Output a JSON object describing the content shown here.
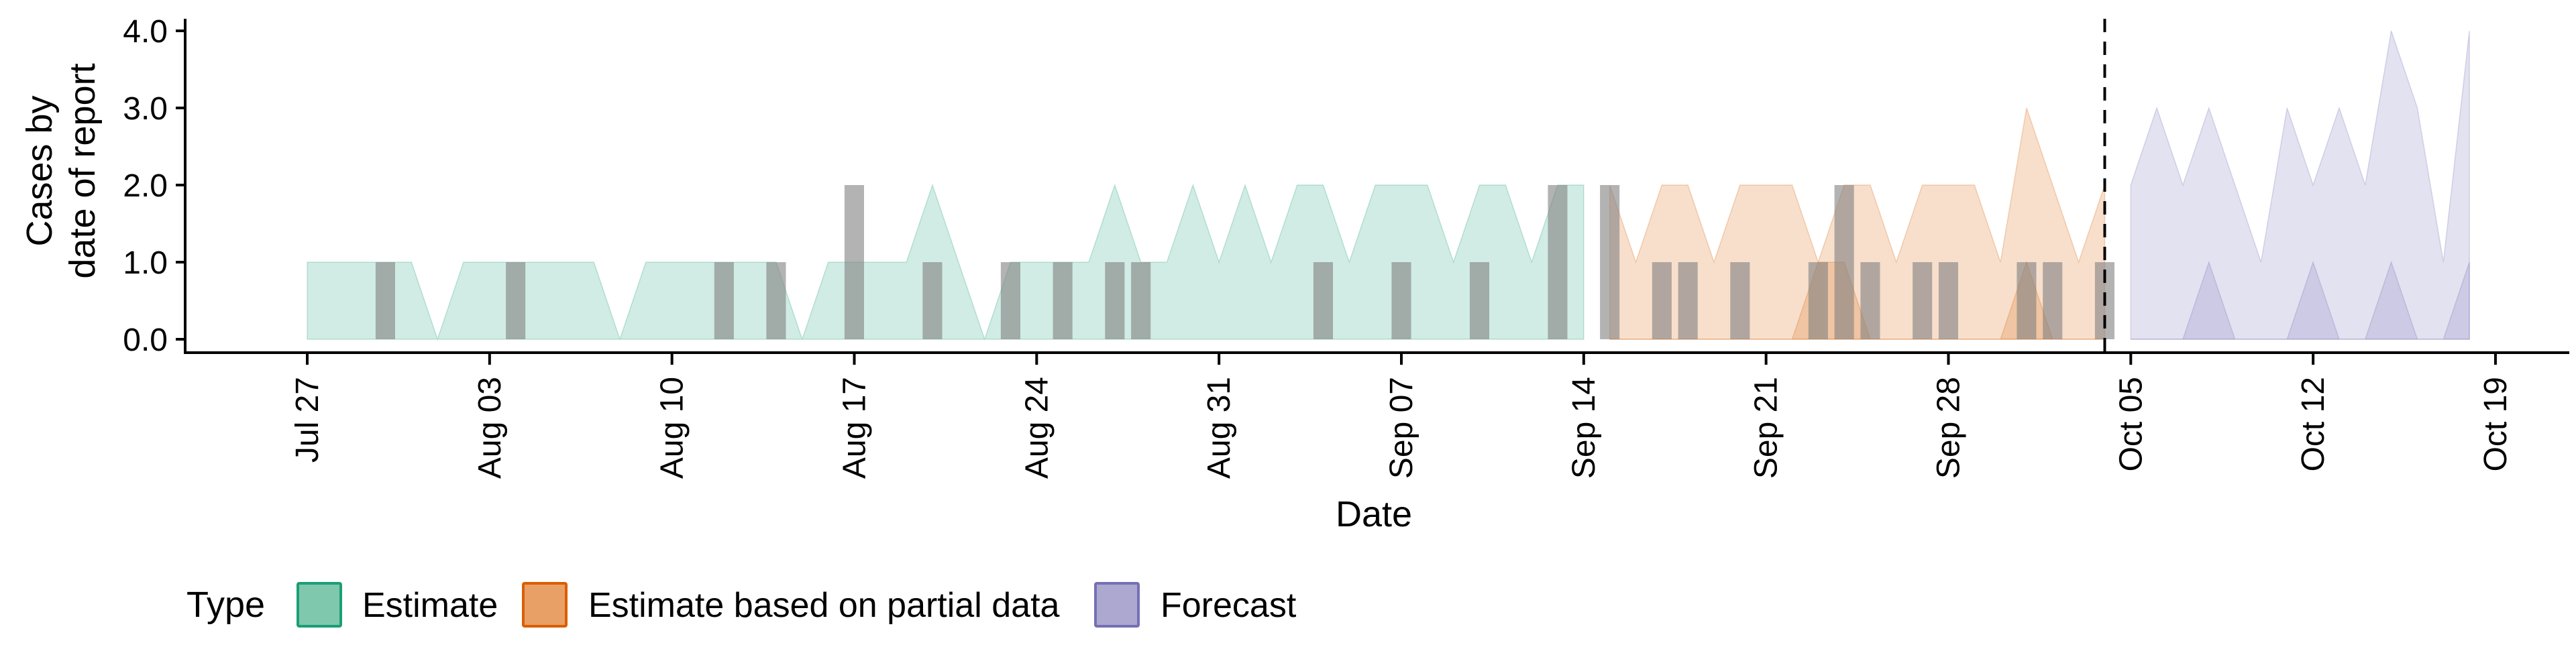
{
  "chart_data": {
    "type": "area",
    "xlabel": "Date",
    "ylabel_lines": [
      "Cases by",
      "date of report"
    ],
    "ylim": [
      0,
      4.0
    ],
    "xlim": [
      "2020-07-24",
      "2020-10-21"
    ],
    "y_ticks": [
      {
        "value": 0,
        "label": "0.0"
      },
      {
        "value": 1,
        "label": "1.0"
      },
      {
        "value": 2,
        "label": "2.0"
      },
      {
        "value": 3,
        "label": "3.0"
      },
      {
        "value": 4,
        "label": "4.0"
      }
    ],
    "x_ticks": [
      {
        "date": "2020-07-27",
        "label": "Jul 27"
      },
      {
        "date": "2020-08-03",
        "label": "Aug 03"
      },
      {
        "date": "2020-08-10",
        "label": "Aug 10"
      },
      {
        "date": "2020-08-17",
        "label": "Aug 17"
      },
      {
        "date": "2020-08-24",
        "label": "Aug 24"
      },
      {
        "date": "2020-08-31",
        "label": "Aug 31"
      },
      {
        "date": "2020-09-07",
        "label": "Sep 07"
      },
      {
        "date": "2020-09-14",
        "label": "Sep 14"
      },
      {
        "date": "2020-09-21",
        "label": "Sep 21"
      },
      {
        "date": "2020-09-28",
        "label": "Sep 28"
      },
      {
        "date": "2020-10-05",
        "label": "Oct 05"
      },
      {
        "date": "2020-10-12",
        "label": "Oct 12"
      },
      {
        "date": "2020-10-19",
        "label": "Oct 19"
      }
    ],
    "forecast_date": "2020-10-04",
    "grid": false,
    "legend": {
      "title": "Type",
      "position": "bottom",
      "entries": [
        {
          "name": "Estimate",
          "fill": "#7fc8ae",
          "stroke": "#1b9e77"
        },
        {
          "name": "Estimate based on partial data",
          "fill": "#e9a066",
          "stroke": "#d95f02"
        },
        {
          "name": "Forecast",
          "fill": "#ada8d0",
          "stroke": "#7570b3"
        }
      ]
    },
    "series": [
      {
        "name": "Estimate",
        "color": "#1b9e77",
        "x": [
          "2020-07-27",
          "2020-07-28",
          "2020-07-29",
          "2020-07-30",
          "2020-07-31",
          "2020-08-01",
          "2020-08-02",
          "2020-08-03",
          "2020-08-04",
          "2020-08-05",
          "2020-08-06",
          "2020-08-07",
          "2020-08-08",
          "2020-08-09",
          "2020-08-10",
          "2020-08-11",
          "2020-08-12",
          "2020-08-13",
          "2020-08-14",
          "2020-08-15",
          "2020-08-16",
          "2020-08-17",
          "2020-08-18",
          "2020-08-19",
          "2020-08-20",
          "2020-08-21",
          "2020-08-22",
          "2020-08-23",
          "2020-08-24",
          "2020-08-25",
          "2020-08-26",
          "2020-08-27",
          "2020-08-28",
          "2020-08-29",
          "2020-08-30",
          "2020-08-31",
          "2020-09-01",
          "2020-09-02",
          "2020-09-03",
          "2020-09-04",
          "2020-09-05",
          "2020-09-06",
          "2020-09-07",
          "2020-09-08",
          "2020-09-09",
          "2020-09-10",
          "2020-09-11",
          "2020-09-12",
          "2020-09-13",
          "2020-09-14"
        ],
        "bands": [
          {
            "lower": 0,
            "upper": [
              1,
              1,
              1,
              1,
              1,
              0,
              1,
              1,
              1,
              1,
              1,
              1,
              0,
              1,
              1,
              1,
              1,
              1,
              1,
              0,
              1,
              1,
              1,
              1,
              2,
              1,
              0,
              1,
              1,
              1,
              1,
              2,
              1,
              1,
              2,
              1,
              2,
              1,
              2,
              2,
              1,
              2,
              2,
              2,
              1,
              2,
              2,
              1,
              2,
              2
            ]
          },
          {
            "lower": 0,
            "upper": [
              0,
              0,
              0,
              0,
              0,
              0,
              0,
              0,
              0,
              0,
              0,
              0,
              0,
              0,
              0,
              0,
              0,
              0,
              0,
              0,
              0,
              0,
              0,
              0,
              0,
              0,
              0,
              0,
              0,
              0,
              0,
              0,
              0,
              0,
              0,
              0,
              0,
              0,
              0,
              0,
              0,
              0,
              0,
              0,
              0,
              0,
              0,
              0,
              0,
              0
            ]
          }
        ]
      },
      {
        "name": "Estimate based on partial data",
        "color": "#d95f02",
        "x": [
          "2020-09-15",
          "2020-09-16",
          "2020-09-17",
          "2020-09-18",
          "2020-09-19",
          "2020-09-20",
          "2020-09-21",
          "2020-09-22",
          "2020-09-23",
          "2020-09-24",
          "2020-09-25",
          "2020-09-26",
          "2020-09-27",
          "2020-09-28",
          "2020-09-29",
          "2020-09-30",
          "2020-10-01",
          "2020-10-02",
          "2020-10-03",
          "2020-10-04"
        ],
        "bands": [
          {
            "lower": 0,
            "upper": [
              2,
              1,
              2,
              2,
              1,
              2,
              2,
              2,
              1,
              2,
              2,
              1,
              2,
              2,
              2,
              1,
              3,
              2,
              1,
              2
            ]
          },
          {
            "lower": 0,
            "upper": [
              0,
              0,
              0,
              0,
              0,
              0,
              0,
              0,
              1,
              1,
              0,
              0,
              0,
              0,
              0,
              0,
              1,
              0,
              0,
              0
            ]
          }
        ]
      },
      {
        "name": "Forecast",
        "color": "#7570b3",
        "x": [
          "2020-10-05",
          "2020-10-06",
          "2020-10-07",
          "2020-10-08",
          "2020-10-09",
          "2020-10-10",
          "2020-10-11",
          "2020-10-12",
          "2020-10-13",
          "2020-10-14",
          "2020-10-15",
          "2020-10-16",
          "2020-10-17",
          "2020-10-18"
        ],
        "bands": [
          {
            "lower": 0,
            "upper": [
              2,
              3,
              2,
              3,
              2,
              1,
              3,
              2,
              3,
              2,
              4,
              3,
              1,
              4
            ]
          },
          {
            "lower": 0,
            "upper": [
              0,
              0,
              0,
              1,
              0,
              0,
              0,
              1,
              0,
              0,
              1,
              0,
              0,
              1
            ]
          }
        ]
      }
    ],
    "reported_cases": {
      "color": "#808080",
      "dates": [
        "2020-07-30",
        "2020-08-04",
        "2020-08-12",
        "2020-08-14",
        "2020-08-17",
        "2020-08-20",
        "2020-08-23",
        "2020-08-25",
        "2020-08-27",
        "2020-08-28",
        "2020-09-04",
        "2020-09-07",
        "2020-09-10",
        "2020-09-13",
        "2020-09-15",
        "2020-09-17",
        "2020-09-18",
        "2020-09-20",
        "2020-09-23",
        "2020-09-24",
        "2020-09-25",
        "2020-09-27",
        "2020-09-28",
        "2020-10-01",
        "2020-10-02",
        "2020-10-04"
      ],
      "values": [
        1,
        1,
        1,
        1,
        2,
        1,
        1,
        1,
        1,
        1,
        1,
        1,
        1,
        2,
        2,
        1,
        1,
        1,
        1,
        2,
        1,
        1,
        1,
        1,
        1,
        1
      ]
    }
  }
}
